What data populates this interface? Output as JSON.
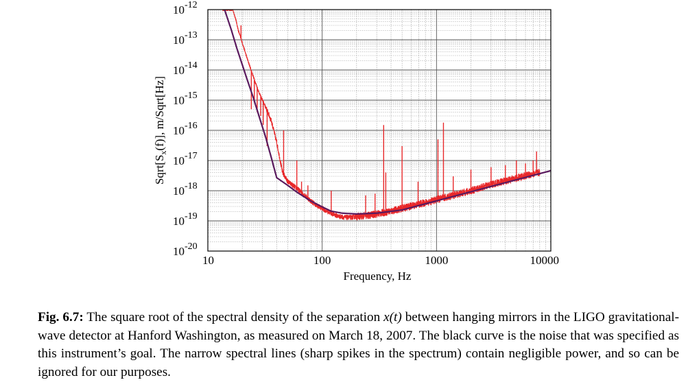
{
  "chart_data": {
    "type": "line",
    "xlabel": "Frequency, Hz",
    "ylabel": "Sqrt[Sₓ(f)],   m/Sqrt[Hz]",
    "ylabel_parts": {
      "pre": "Sqrt[S",
      "sub": "x",
      "post": "(f)],   m/Sqrt[Hz]"
    },
    "xscale": "log",
    "yscale": "log",
    "xlim": [
      10,
      10000
    ],
    "ylim": [
      1e-20,
      1e-12
    ],
    "x_ticks": [
      {
        "value": 10,
        "label": "10"
      },
      {
        "value": 100,
        "label": "100"
      },
      {
        "value": 1000,
        "label": "1000"
      },
      {
        "value": 10000,
        "label": "10000"
      }
    ],
    "y_ticks": [
      {
        "exp": -12,
        "base": "10",
        "power": "-12"
      },
      {
        "exp": -13,
        "base": "10",
        "power": "-13"
      },
      {
        "exp": -14,
        "base": "10",
        "power": "-14"
      },
      {
        "exp": -15,
        "base": "10",
        "power": "-15"
      },
      {
        "exp": -16,
        "base": "10",
        "power": "-16"
      },
      {
        "exp": -17,
        "base": "10",
        "power": "-17"
      },
      {
        "exp": -18,
        "base": "10",
        "power": "-18"
      },
      {
        "exp": -19,
        "base": "10",
        "power": "-19"
      },
      {
        "exp": -20,
        "base": "10",
        "power": "-20"
      }
    ],
    "grid": true,
    "series": [
      {
        "role": "measured",
        "color": "#e8282a",
        "x": [
          13.5,
          15,
          16.5,
          17.5,
          18.5,
          20,
          22,
          25,
          28,
          32,
          36,
          40,
          45,
          50,
          60,
          70,
          80,
          90,
          100,
          110,
          120,
          140,
          160,
          180,
          200,
          250,
          300,
          350,
          400,
          500,
          600,
          800,
          1000,
          1200,
          1500,
          2000,
          2500,
          3000,
          4000,
          5000,
          6000,
          7000,
          8000
        ],
        "y": [
          1e-12,
          1e-12,
          1e-12,
          5e-13,
          2e-13,
          8e-14,
          2.5e-14,
          6e-15,
          1.8e-15,
          6e-16,
          2e-16,
          4e-17,
          4e-18,
          2e-18,
          1.2e-18,
          7e-19,
          4.5e-19,
          3.2e-19,
          2.6e-19,
          2.1e-19,
          1.8e-19,
          1.4e-19,
          1.3e-19,
          1.3e-19,
          1.4e-19,
          1.5e-19,
          1.7e-19,
          1.9e-19,
          2.1e-19,
          2.6e-19,
          3.1e-19,
          4e-19,
          5e-19,
          6e-19,
          7.5e-19,
          1e-18,
          1.3e-18,
          1.6e-18,
          2.1e-18,
          2.6e-18,
          3.1e-18,
          3.6e-18,
          4e-18
        ]
      },
      {
        "role": "goal",
        "color": "#5a1a5e",
        "x": [
          14,
          16,
          18,
          20,
          22,
          25,
          28,
          32,
          36,
          40,
          50,
          60,
          80,
          100,
          120,
          150,
          200,
          300,
          500,
          1000,
          2000,
          5000,
          10000
        ],
        "y": [
          1e-12,
          2.2e-13,
          5e-14,
          1.5e-14,
          5e-15,
          1.2e-15,
          3e-16,
          6e-17,
          1.2e-17,
          2.7e-18,
          1.5e-18,
          9e-19,
          4.5e-19,
          2.9e-19,
          2.1e-19,
          1.8e-19,
          1.7e-19,
          1.8e-19,
          2.3e-19,
          4.6e-19,
          9.2e-19,
          2.3e-18,
          4.6e-18
        ]
      }
    ],
    "spikes": [
      {
        "x": 19.5,
        "y": 3e-13
      },
      {
        "x": 24,
        "y": 5e-16
      },
      {
        "x": 25.5,
        "y": 1e-15
      },
      {
        "x": 27,
        "y": 4e-16
      },
      {
        "x": 29,
        "y": 3e-16
      },
      {
        "x": 30.5,
        "y": 1.5e-16
      },
      {
        "x": 33,
        "y": 3e-17
      },
      {
        "x": 40,
        "y": 5e-17
      },
      {
        "x": 46,
        "y": 1e-16
      },
      {
        "x": 51,
        "y": 2e-18
      },
      {
        "x": 60,
        "y": 1e-17
      },
      {
        "x": 66,
        "y": 2e-18
      },
      {
        "x": 75,
        "y": 1.5e-18
      },
      {
        "x": 120,
        "y": 1e-18
      },
      {
        "x": 240,
        "y": 7e-19
      },
      {
        "x": 290,
        "y": 8e-19
      },
      {
        "x": 345,
        "y": 1.5e-16
      },
      {
        "x": 360,
        "y": 4e-18
      },
      {
        "x": 500,
        "y": 3e-17
      },
      {
        "x": 690,
        "y": 2e-18
      },
      {
        "x": 1030,
        "y": 5e-17
      },
      {
        "x": 1150,
        "y": 1.8e-16
      },
      {
        "x": 1400,
        "y": 3e-18
      },
      {
        "x": 2000,
        "y": 5e-18
      },
      {
        "x": 3000,
        "y": 6e-18
      },
      {
        "x": 4000,
        "y": 7e-18
      },
      {
        "x": 5000,
        "y": 1e-17
      },
      {
        "x": 6000,
        "y": 8e-18
      },
      {
        "x": 7000,
        "y": 1e-17
      },
      {
        "x": 7500,
        "y": 2e-17
      }
    ]
  },
  "caption": {
    "label": "Fig. 6.7:",
    "text_before_var": " The square root of the spectral density of the separation ",
    "var": "x(t)",
    "text_after_var": " between hanging mirrors in the LIGO gravitational-wave detector at Hanford Washington, as measured on March 18, 2007. The black curve is the noise that was specified as this instrument’s goal. The narrow spectral lines (sharp spikes in the spectrum) contain negligible power, and so can be ignored for our purposes."
  }
}
